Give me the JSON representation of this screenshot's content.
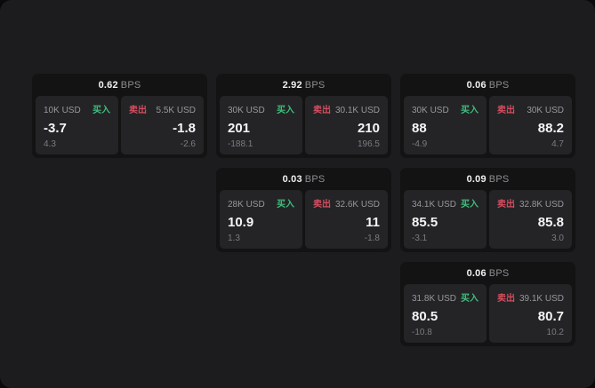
{
  "labels": {
    "bps_suffix": "BPS",
    "buy": "买入",
    "sell": "卖出"
  },
  "colors": {
    "buy_green": "#3fbe7b",
    "sell_red": "#d34d5f",
    "window_bg": "#1c1c1e",
    "card_bg": "#131314",
    "panel_bg": "#242427"
  },
  "cards": [
    {
      "bps": "0.62",
      "buy": {
        "amount": "10K USD",
        "value": "-3.7",
        "sub": "4.3"
      },
      "sell": {
        "amount": "5.5K USD",
        "value": "-1.8",
        "sub": "-2.6"
      }
    },
    {
      "bps": "2.92",
      "buy": {
        "amount": "30K USD",
        "value": "201",
        "sub": "-188.1"
      },
      "sell": {
        "amount": "30.1K USD",
        "value": "210",
        "sub": "196.5"
      }
    },
    {
      "bps": "0.06",
      "buy": {
        "amount": "30K USD",
        "value": "88",
        "sub": "-4.9"
      },
      "sell": {
        "amount": "30K USD",
        "value": "88.2",
        "sub": "4.7"
      }
    },
    {
      "bps": "0.03",
      "buy": {
        "amount": "28K USD",
        "value": "10.9",
        "sub": "1.3"
      },
      "sell": {
        "amount": "32.6K USD",
        "value": "11",
        "sub": "-1.8"
      }
    },
    {
      "bps": "0.09",
      "buy": {
        "amount": "34.1K USD",
        "value": "85.5",
        "sub": "-3.1"
      },
      "sell": {
        "amount": "32.8K USD",
        "value": "85.8",
        "sub": "3.0"
      }
    },
    {
      "bps": "0.06",
      "buy": {
        "amount": "31.8K USD",
        "value": "80.5",
        "sub": "-10.8"
      },
      "sell": {
        "amount": "39.1K USD",
        "value": "80.7",
        "sub": "10.2"
      }
    }
  ]
}
